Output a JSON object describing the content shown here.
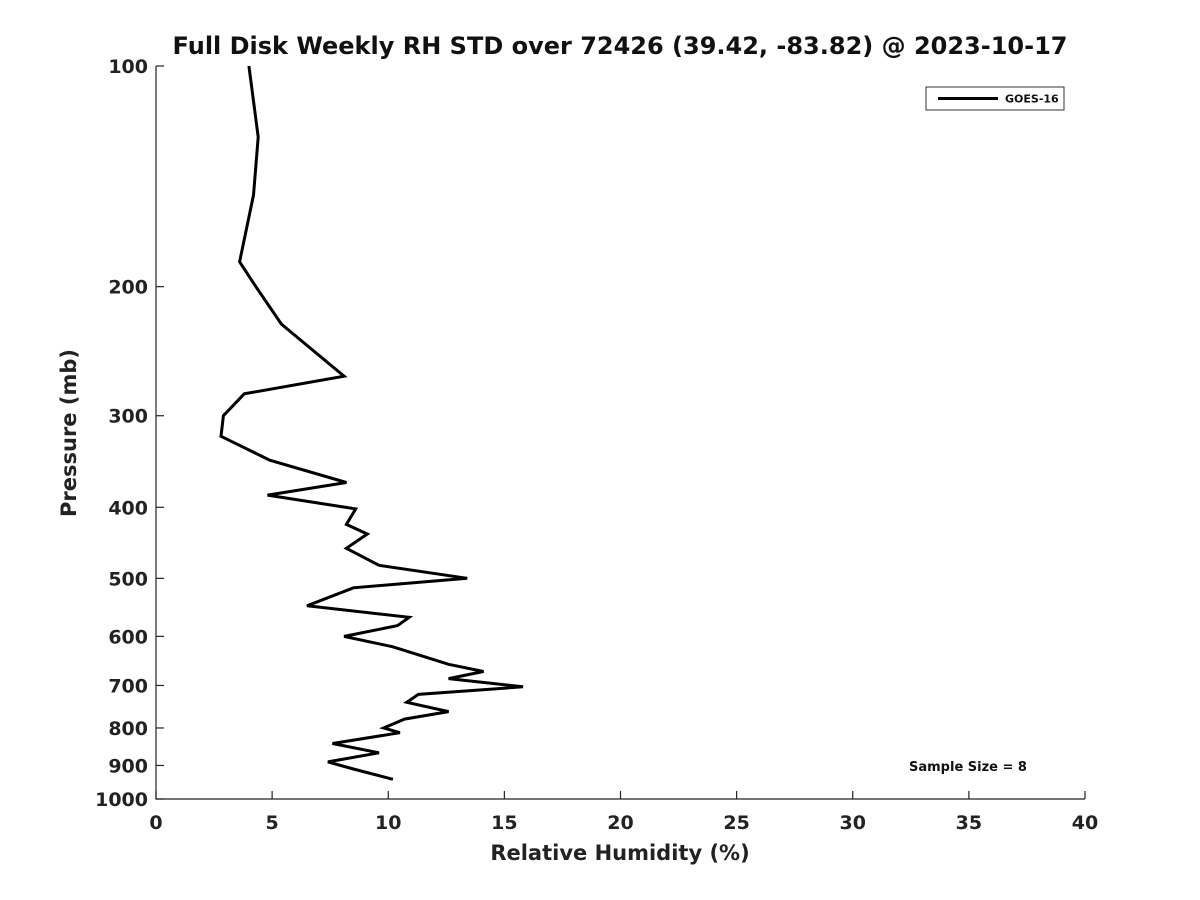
{
  "chart_data": {
    "type": "line",
    "title": "Full Disk Weekly RH STD over 72426 (39.42, -83.82) @ 2023-10-17",
    "xlabel": "Relative Humidity (%)",
    "ylabel": "Pressure (mb)",
    "xlim": [
      0,
      40
    ],
    "ylim": [
      100,
      1000
    ],
    "y_scale": "log",
    "y_reversed": true,
    "xticks": [
      0,
      5,
      10,
      15,
      20,
      25,
      30,
      35,
      40
    ],
    "yticks": [
      100,
      200,
      300,
      400,
      500,
      600,
      700,
      800,
      900,
      1000
    ],
    "grid": false,
    "legend": {
      "position": "top-right",
      "entries": [
        "GOES-16"
      ]
    },
    "annotation": "Sample Size = 8",
    "series": [
      {
        "name": "GOES-16",
        "color": "#000000",
        "x": [
          4.0,
          4.4,
          4.2,
          3.6,
          4.3,
          5.4,
          8.1,
          3.8,
          2.9,
          2.8,
          4.9,
          8.2,
          4.8,
          8.6,
          8.2,
          9.1,
          8.2,
          9.6,
          13.4,
          8.5,
          6.5,
          10.9,
          10.4,
          8.1,
          10.2,
          12.6,
          14.1,
          12.6,
          15.8,
          11.3,
          10.8,
          12.6,
          10.7,
          9.8,
          10.5,
          7.6,
          9.6,
          7.4,
          8.5,
          10.2
        ],
        "y": [
          100,
          125,
          150,
          185,
          200,
          225,
          265,
          280,
          300,
          320,
          345,
          370,
          385,
          402,
          422,
          435,
          455,
          480,
          500,
          515,
          545,
          565,
          580,
          600,
          620,
          655,
          670,
          685,
          703,
          720,
          738,
          760,
          778,
          800,
          812,
          840,
          865,
          890,
          910,
          940
        ]
      }
    ]
  }
}
